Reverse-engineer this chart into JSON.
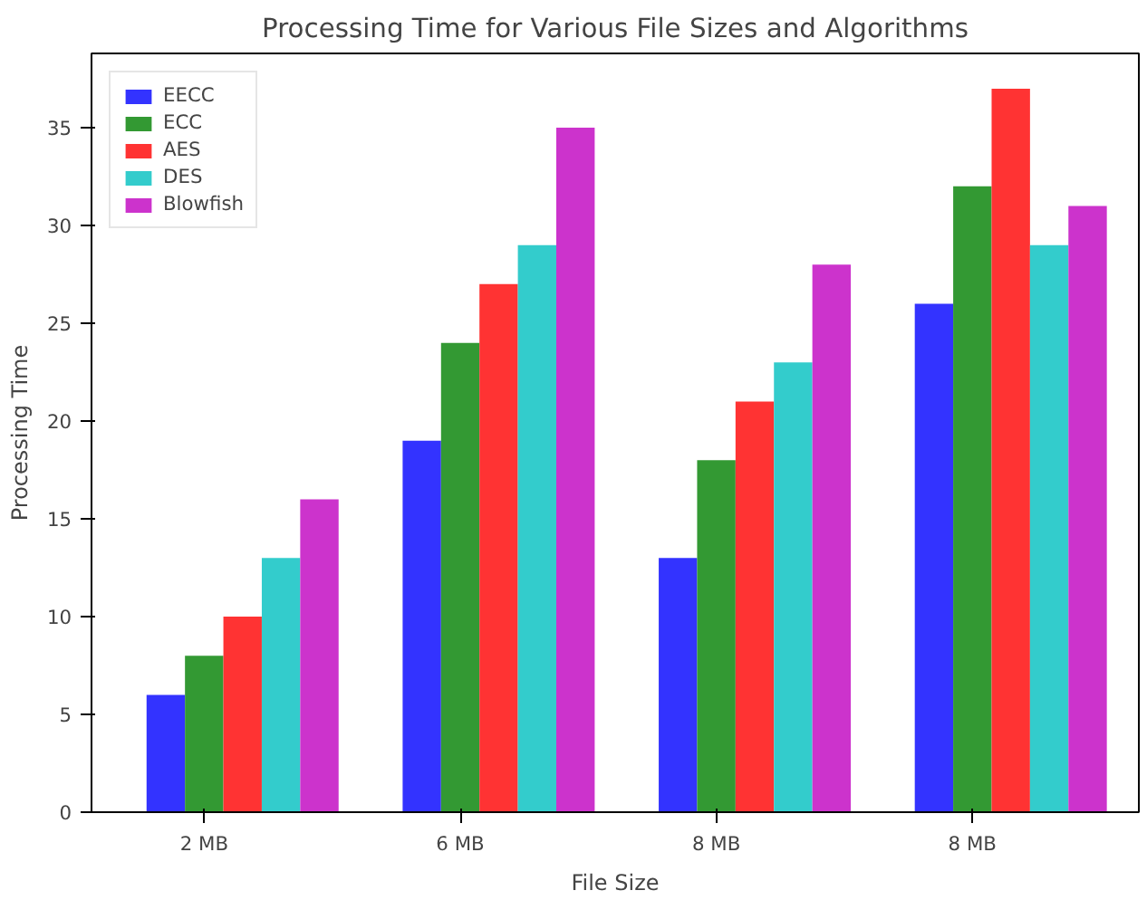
{
  "chart_data": {
    "type": "bar",
    "title": "Processing Time for Various File Sizes and Algorithms",
    "xlabel": "File Size",
    "ylabel": "Processing Time",
    "categories": [
      "2 MB",
      "6 MB",
      "8 MB",
      "8 MB"
    ],
    "series": [
      {
        "name": "EECC",
        "color": "#3333ff",
        "values": [
          6,
          19,
          13,
          26
        ]
      },
      {
        "name": "ECC",
        "color": "#339933",
        "values": [
          8,
          24,
          18,
          32
        ]
      },
      {
        "name": "AES",
        "color": "#ff3333",
        "values": [
          10,
          27,
          21,
          37
        ]
      },
      {
        "name": "DES",
        "color": "#33cccc",
        "values": [
          13,
          29,
          23,
          29
        ]
      },
      {
        "name": "Blowfish",
        "color": "#cc33cc",
        "values": [
          16,
          35,
          28,
          31
        ]
      }
    ],
    "ylim": [
      0,
      38.8
    ],
    "yticks": [
      0,
      5,
      10,
      15,
      20,
      25,
      30,
      35
    ],
    "grid": false,
    "legend": "top left"
  }
}
